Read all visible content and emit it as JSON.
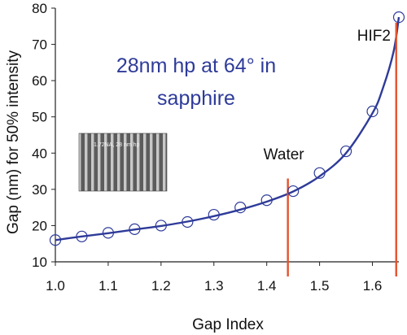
{
  "chart_data": {
    "type": "scatter",
    "title_lines": [
      "28nm hp at 64° in",
      "sapphire"
    ],
    "xlabel": "Gap Index",
    "ylabel": "Gap (nm) for 50% intensity",
    "xlim": [
      1.0,
      1.65
    ],
    "ylim": [
      10,
      80
    ],
    "x_ticks": [
      "1.0",
      "1.1",
      "1.2",
      "1.3",
      "1.4",
      "1.5",
      "1.6"
    ],
    "y_ticks": [
      "10",
      "20",
      "30",
      "40",
      "50",
      "60",
      "70",
      "80"
    ],
    "grid": false,
    "series": [
      {
        "marker": "open-circle",
        "x": [
          1.0,
          1.05,
          1.1,
          1.15,
          1.2,
          1.25,
          1.3,
          1.35,
          1.4,
          1.45,
          1.5,
          1.55,
          1.6,
          1.65
        ],
        "y": [
          16,
          17,
          18,
          19,
          20,
          21,
          23,
          25,
          27,
          29.5,
          34.5,
          40.5,
          51.5,
          77.5
        ]
      }
    ],
    "fit_curve": {
      "x": [
        1.0,
        1.05,
        1.1,
        1.15,
        1.2,
        1.25,
        1.3,
        1.35,
        1.4,
        1.45,
        1.5,
        1.55,
        1.6,
        1.62,
        1.64,
        1.65
      ],
      "y": [
        16,
        17,
        17.9,
        18.9,
        19.9,
        21.1,
        22.6,
        24.4,
        26.6,
        29.4,
        33.6,
        40.0,
        51.0,
        58.0,
        68.0,
        77.5
      ]
    },
    "vlines": [
      {
        "label": "Water",
        "x": 1.44,
        "color": "#e4532c"
      },
      {
        "label": "HIF2",
        "x": 1.645,
        "color": "#e4532c"
      }
    ],
    "inset_label": "1.72NA, 28 nm hp",
    "colors": {
      "curve": "#2e3b99",
      "title": "#2e3b99",
      "marker": "#2e3b99",
      "vline": "#e4532c"
    }
  }
}
